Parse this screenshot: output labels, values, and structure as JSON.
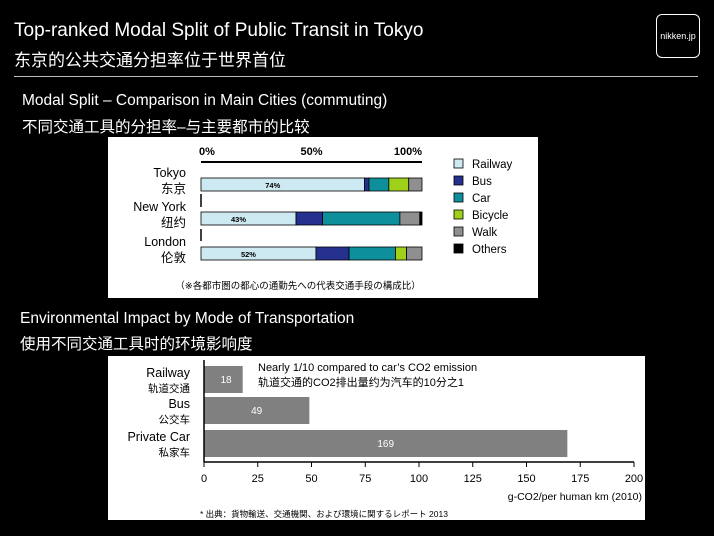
{
  "header": {
    "title_en": "Top-ranked Modal Split of Public Transit in Tokyo",
    "title_zh": "东京的公共交通分担率位于世界首位",
    "brand": "nikken.jp"
  },
  "section1": {
    "title_en": "Modal Split  – Comparison in Main Cities (commuting)",
    "title_zh": "不同交通工具的分担率–与主要都市的比较"
  },
  "section2": {
    "title_en": "Environmental Impact by Mode of Transportation",
    "title_zh": "使用不同交通工具时的环境影响度"
  },
  "chart_data": [
    {
      "type": "bar",
      "stacked": true,
      "orientation": "horizontal",
      "axis_ticks": [
        "0%",
        "50%",
        "100%"
      ],
      "xlim": [
        0,
        100
      ],
      "categories": [
        {
          "en": "Tokyo",
          "zh": "东京",
          "label": "74%"
        },
        {
          "en": "New York",
          "zh": "纽约",
          "label": "43%"
        },
        {
          "en": "London",
          "zh": "伦敦",
          "label": "52%"
        }
      ],
      "series": [
        {
          "name": "Railway",
          "color": "#cde9f1",
          "values": [
            74,
            43,
            52
          ]
        },
        {
          "name": "Bus",
          "color": "#26318f",
          "values": [
            2,
            12,
            15
          ]
        },
        {
          "name": "Car",
          "color": "#0d8f9c",
          "values": [
            9,
            35,
            21
          ]
        },
        {
          "name": "Bicycle",
          "color": "#9fd11b",
          "values": [
            9,
            0,
            5
          ]
        },
        {
          "name": "Walk",
          "color": "#8f8f8f",
          "values": [
            6,
            9,
            7
          ]
        },
        {
          "name": "Others",
          "color": "#000000",
          "values": [
            0,
            1,
            0
          ]
        }
      ],
      "footnote": "（※各都市圏の都心の通勤先への代表交通手段の構成比）"
    },
    {
      "type": "bar",
      "orientation": "horizontal",
      "categories": [
        {
          "en": "Railway",
          "zh": "轨道交通"
        },
        {
          "en": "Bus",
          "zh": "公交车"
        },
        {
          "en": "Private Car",
          "zh": "私家车"
        }
      ],
      "values": [
        18,
        49,
        169
      ],
      "bar_color": "#808080",
      "xlim": [
        0,
        200
      ],
      "xticks": [
        0,
        25,
        50,
        75,
        100,
        125,
        150,
        175,
        200
      ],
      "xlabel": "g-CO2/per human km (2010)",
      "annotation_en": "Nearly 1/10 compared to car’s CO2 emission",
      "annotation_zh": "轨道交通的CO2排出量约为汽车的10分之1",
      "source": "* 出典：貨物輸送、交通機関、および環境に関するレポート 2013"
    }
  ]
}
